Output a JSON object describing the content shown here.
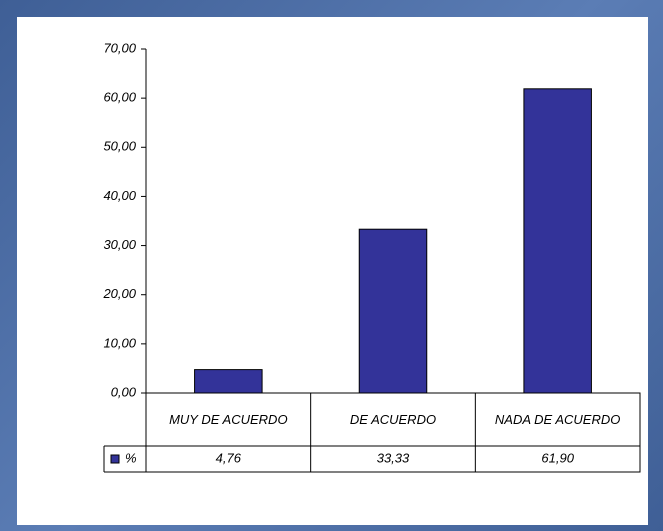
{
  "chart_data": {
    "type": "bar",
    "categories": [
      "MUY DE ACUERDO",
      "DE ACUERDO",
      "NADA DE ACUERDO"
    ],
    "series": [
      {
        "name": "%",
        "color": "#333399",
        "values": [
          4.76,
          33.33,
          61.9
        ],
        "value_labels": [
          "4,76",
          "33,33",
          "61,90"
        ]
      }
    ],
    "ylim": [
      0,
      70
    ],
    "yticks": [
      {
        "value": 0,
        "label": "0,00"
      },
      {
        "value": 10,
        "label": "10,00"
      },
      {
        "value": 20,
        "label": "20,00"
      },
      {
        "value": 30,
        "label": "30,00"
      },
      {
        "value": 40,
        "label": "40,00"
      },
      {
        "value": 50,
        "label": "50,00"
      },
      {
        "value": 60,
        "label": "60,00"
      },
      {
        "value": 70,
        "label": "70,00"
      }
    ],
    "grid": false,
    "data_table": true
  }
}
